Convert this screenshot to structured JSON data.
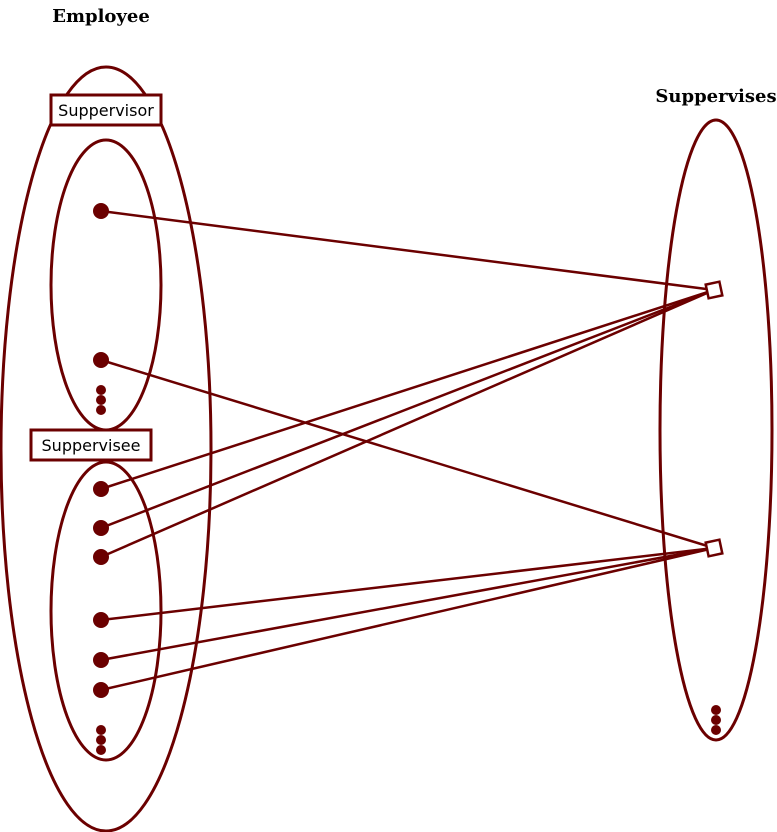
{
  "colors": {
    "accent": "#6b0000",
    "text": "#000000",
    "background": "#ffffff"
  },
  "sets": {
    "employee": {
      "title": "Employee"
    },
    "relationship": {
      "title": "Suppervises"
    }
  },
  "roles": {
    "supervisor": {
      "label": "Suppervisor"
    },
    "supervisee": {
      "label": "Suppervisee"
    }
  }
}
